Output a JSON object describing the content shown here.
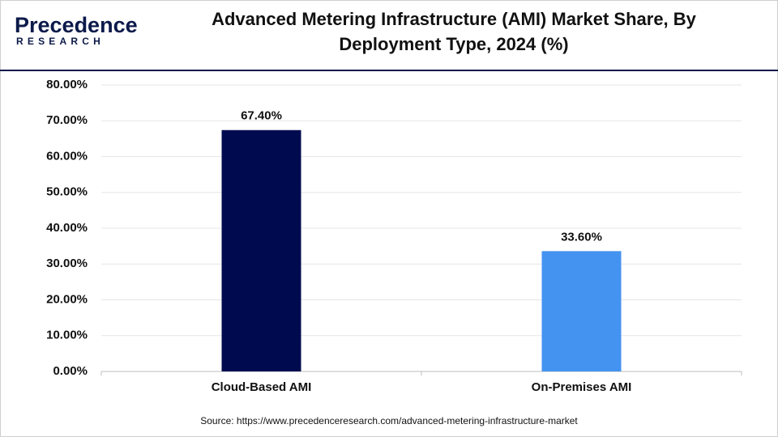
{
  "logo": {
    "name": "Precedence",
    "tagline": "RESEARCH"
  },
  "chart_data": {
    "type": "bar",
    "title": "Advanced Metering Infrastructure (AMI) Market Share, By Deployment Type, 2024 (%)",
    "categories": [
      "Cloud-Based AMI",
      "On-Premises AMI"
    ],
    "values": [
      67.4,
      33.6
    ],
    "value_labels": [
      "67.40%",
      "33.60%"
    ],
    "colors": [
      "#000b4f",
      "#4493f0"
    ],
    "ylim": [
      0,
      80
    ],
    "yticks": [
      {
        "value": 0,
        "label": "0.00%"
      },
      {
        "value": 10,
        "label": "10.00%"
      },
      {
        "value": 20,
        "label": "20.00%"
      },
      {
        "value": 30,
        "label": "30.00%"
      },
      {
        "value": 40,
        "label": "40.00%"
      },
      {
        "value": 50,
        "label": "50.00%"
      },
      {
        "value": 60,
        "label": "60.00%"
      },
      {
        "value": 70,
        "label": "70.00%"
      },
      {
        "value": 80,
        "label": "80.00%"
      }
    ],
    "grid": true,
    "source": "Source: https://www.precedenceresearch.com/advanced-metering-infrastructure-market"
  }
}
